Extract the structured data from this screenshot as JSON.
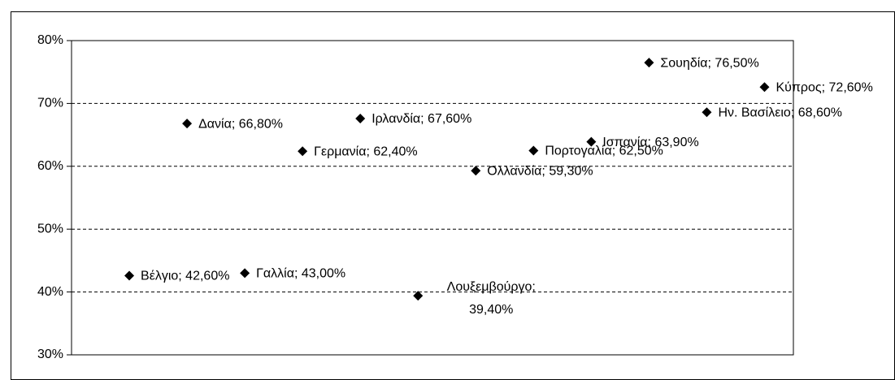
{
  "chart_data": {
    "type": "scatter",
    "categories": [
      null,
      null,
      null,
      null,
      null,
      null,
      null,
      null,
      null,
      null,
      null,
      null
    ],
    "values": [
      42.6,
      66.8,
      43.0,
      62.4,
      67.6,
      39.4,
      59.3,
      62.5,
      63.9,
      76.5,
      68.6,
      72.6
    ],
    "value_labels": [
      "Βέλγιο; 42,60%",
      "Δανία; 66,80%",
      "Γαλλία; 43,00%",
      "Γερμανία; 62,40%",
      "Ιρλανδία; 67,60%",
      "Λουξεμβούργο;\n39,40%",
      "Ολλανδία; 59,30%",
      "Πορτογαλία; 62,50%",
      "Ισπανία; 63,90%",
      "Σουηδία; 76,50%",
      "Ην. Βασίλειο; 68,60%",
      "Κύπρος; 72,60%"
    ],
    "color": "#000000",
    "ylim": [
      30,
      80
    ],
    "yticks": [
      {
        "value": 30,
        "label": "30%"
      },
      {
        "value": 40,
        "label": "40%"
      },
      {
        "value": 50,
        "label": "50%"
      },
      {
        "value": 60,
        "label": "60%"
      },
      {
        "value": 70,
        "label": "70%"
      },
      {
        "value": 80,
        "label": "80%"
      }
    ],
    "grid": true
  }
}
